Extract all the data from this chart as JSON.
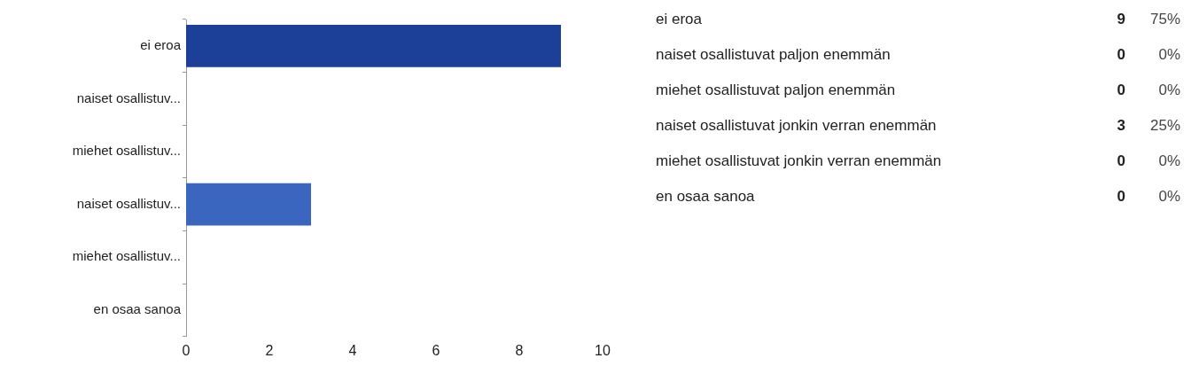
{
  "chart_data": [
    {
      "type": "bar",
      "orientation": "horizontal",
      "categories": [
        "ei eroa",
        "naiset osallistuv...",
        "miehet osallistuv...",
        "naiset osallistuv...",
        "miehet osallistuv...",
        "en osaa sanoa"
      ],
      "values": [
        9,
        0,
        0,
        3,
        0,
        0
      ],
      "colors": [
        "#1c3f98",
        "#3a66bf",
        "#3a66bf",
        "#3a66bf",
        "#3a66bf",
        "#3a66bf"
      ],
      "xlim": [
        0,
        10
      ],
      "xticks": [
        0,
        2,
        4,
        6,
        8,
        10
      ],
      "grid": false,
      "legend": false
    },
    {
      "type": "other",
      "annotations": [
        "ei eroa",
        "9",
        "75%",
        "naiset osallistuvat paljon enemmän",
        "0",
        "0%",
        "miehet osallistuvat paljon enemmän",
        "0",
        "0%",
        "naiset osallistuvat jonkin verran enemmän",
        "3",
        "25%",
        "miehet osallistuvat jonkin verran enemmän",
        "0",
        "0%",
        "en osaa sanoa",
        "0",
        "0%"
      ]
    }
  ]
}
